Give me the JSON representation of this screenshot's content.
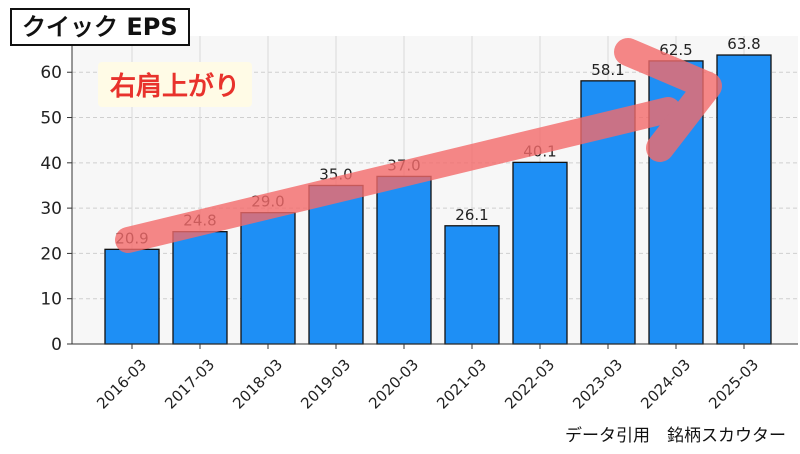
{
  "chart_data": {
    "type": "bar",
    "title": "クイック EPS",
    "annotation": "右肩上がり",
    "credit": "データ引用　銘柄スカウター",
    "categories": [
      "2016-03",
      "2017-03",
      "2018-03",
      "2019-03",
      "2020-03",
      "2021-03",
      "2022-03",
      "2023-03",
      "2024-03",
      "2025-03"
    ],
    "values": [
      20.9,
      24.8,
      29.0,
      35.0,
      37.0,
      26.1,
      40.1,
      58.1,
      62.5,
      63.8
    ],
    "value_labels": [
      "20.9",
      "24.8",
      "29.0",
      "35.0",
      "37.0",
      "26.1",
      "40.1",
      "58.1",
      "62.5",
      "63.8"
    ],
    "ylim": [
      0,
      68
    ],
    "yticks": [
      0,
      10,
      20,
      30,
      40,
      50,
      60
    ],
    "xlabel": "",
    "ylabel": "",
    "grid": true,
    "colors": {
      "bar": "#1e8ff5",
      "bar_edge": "#111111",
      "arrow": "#f46b6b",
      "annotation": "#e8322c",
      "plot_bg": "#f7f7f7"
    }
  }
}
